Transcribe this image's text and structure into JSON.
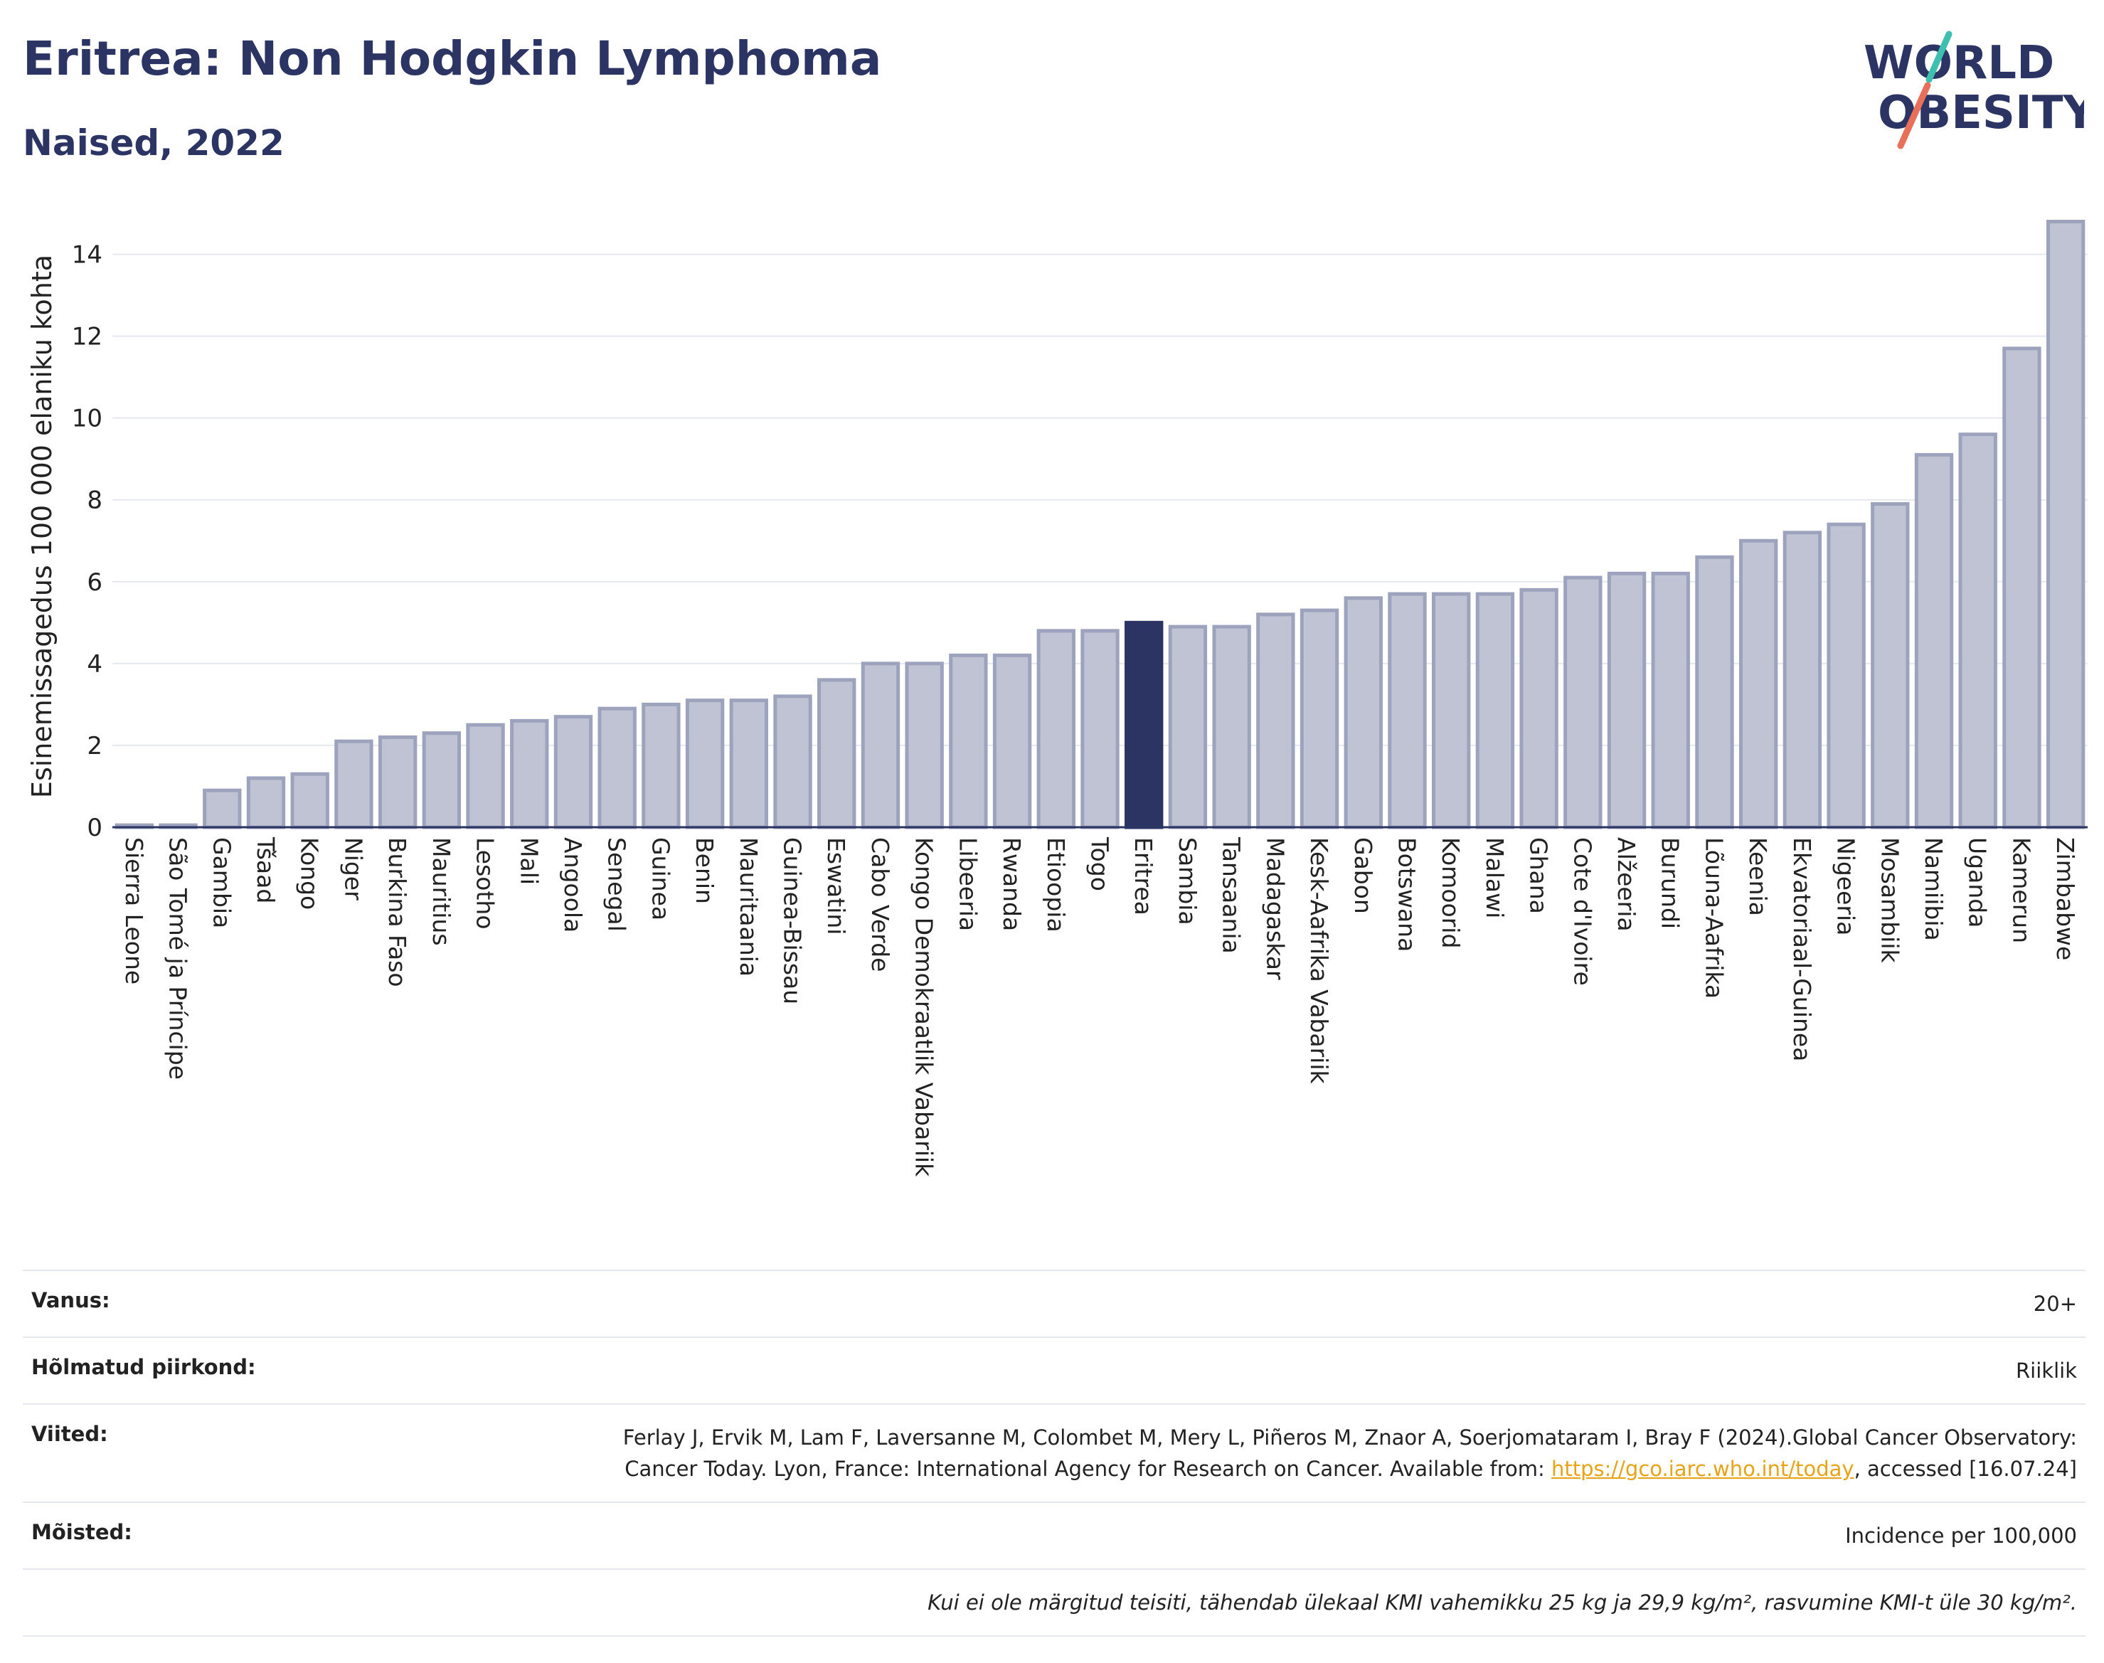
{
  "header": {
    "title": "Eritrea: Non Hodgkin Lymphoma",
    "subtitle": "Naised, 2022"
  },
  "logo": {
    "line1": "WORLD",
    "line2": "OBESITY",
    "accent_colors": [
      "#3fbfb0",
      "#e8705a"
    ]
  },
  "colors": {
    "bar": "#c0c3d3",
    "bar_border": "#9ea3bd",
    "highlight": "#2b3462",
    "grid": "#e6e8f0"
  },
  "chart_data": {
    "type": "bar",
    "ylabel": "Esinemissagedus 100 000 elaniku kohta",
    "ylim": [
      0,
      15
    ],
    "yticks": [
      0,
      2,
      4,
      6,
      8,
      10,
      12,
      14
    ],
    "grid": true,
    "highlight": "Eritrea",
    "categories": [
      "Sierra Leone",
      "São Tomé ja Príncipe",
      "Gambia",
      "Tšaad",
      "Kongo",
      "Niger",
      "Burkina Faso",
      "Mauritius",
      "Lesotho",
      "Mali",
      "Angoola",
      "Senegal",
      "Guinea",
      "Benin",
      "Mauritaania",
      "Guinea-Bissau",
      "Eswatini",
      "Cabo Verde",
      "Kongo Demokraatlik Vabariik",
      "Libeeria",
      "Rwanda",
      "Etioopia",
      "Togo",
      "Eritrea",
      "Sambia",
      "Tansaania",
      "Madagaskar",
      "Kesk-Aafrika Vabariik",
      "Gabon",
      "Botswana",
      "Komoorid",
      "Malawi",
      "Ghana",
      "Cote d'Ivoire",
      "Alžeeria",
      "Burundi",
      "Lõuna-Aafrika",
      "Keenia",
      "Ekvatoriaal-Guinea",
      "Nigeeria",
      "Mosambiik",
      "Namiibia",
      "Uganda",
      "Kamerun",
      "Zimbabwe"
    ],
    "values": [
      0.05,
      0.05,
      0.9,
      1.2,
      1.3,
      2.1,
      2.2,
      2.3,
      2.5,
      2.6,
      2.7,
      2.9,
      3.0,
      3.1,
      3.1,
      3.2,
      3.6,
      4.0,
      4.0,
      4.2,
      4.2,
      4.8,
      4.8,
      5.0,
      4.9,
      4.9,
      5.2,
      5.3,
      5.6,
      5.7,
      5.7,
      5.7,
      5.8,
      6.1,
      6.2,
      6.2,
      6.6,
      7.0,
      7.2,
      7.4,
      7.9,
      9.1,
      9.6,
      11.7,
      14.8
    ]
  },
  "info": {
    "age_label": "Vanus:",
    "age_value": "20+",
    "region_label": "Hõlmatud piirkond:",
    "region_value": "Riiklik",
    "refs_label": "Viited:",
    "refs_text": "Ferlay J, Ervik M, Lam F, Laversanne M, Colombet M, Mery L, Piñeros M, Znaor A, Soerjomataram I, Bray F (2024).Global Cancer Observatory: Cancer Today. Lyon, France: International Agency for Research on Cancer. Available from: ",
    "refs_link": "https://gco.iarc.who.int/today",
    "refs_tail": ", accessed [16.07.24]",
    "defs_label": "Mõisted:",
    "defs_value": "Incidence per 100,000",
    "note": "Kui ei ole märgitud teisiti, tähendab ülekaal KMI vahemikku 25 kg ja 29,9 kg/m², rasvumine KMI-t üle 30 kg/m²."
  }
}
